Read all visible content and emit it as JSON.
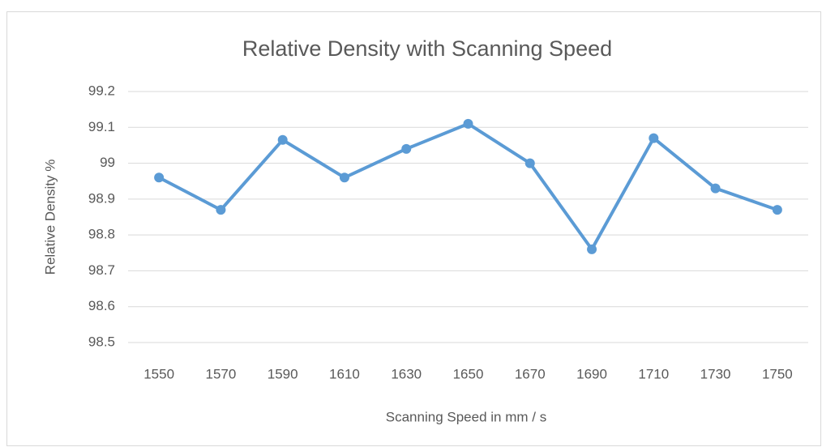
{
  "chart_data": {
    "type": "line",
    "title": "Relative Density with Scanning Speed",
    "x_label": "Scanning Speed in mm / s",
    "y_label": "Relative Density %",
    "categories": [
      "1550",
      "1570",
      "1590",
      "1610",
      "1630",
      "1650",
      "1670",
      "1690",
      "1710",
      "1730",
      "1750"
    ],
    "values": [
      98.96,
      98.87,
      99.065,
      98.96,
      99.04,
      99.11,
      99.0,
      98.76,
      99.07,
      98.93,
      98.87
    ],
    "color": "#5b9bd5",
    "ylim": [
      98.5,
      99.2
    ],
    "yticks": [
      98.5,
      98.6,
      98.7,
      98.8,
      98.9,
      99,
      99.1,
      99.2
    ],
    "grid": true
  }
}
